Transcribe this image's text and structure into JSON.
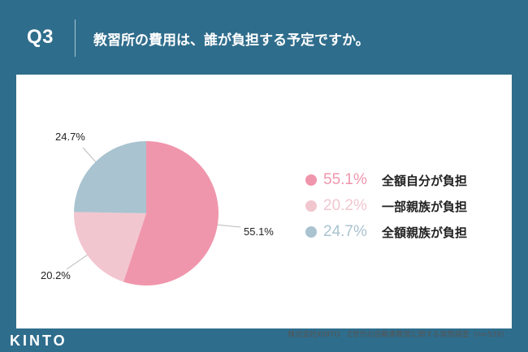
{
  "header": {
    "question_no": "Q3",
    "question": "教習所の費用は、誰が負担する予定ですか。"
  },
  "chart_data": {
    "type": "pie",
    "categories": [
      "全額自分が負担",
      "一部親族が負担",
      "全額親族が負担"
    ],
    "values": [
      55.1,
      20.2,
      24.7
    ],
    "value_labels": [
      "55.1%",
      "20.2%",
      "24.7%"
    ],
    "colors": [
      "#f096ac",
      "#f2c6cf",
      "#a9c3d0"
    ],
    "start_angle_deg": 0,
    "direction": "clockwise",
    "legend_position": "right"
  },
  "legend": [
    {
      "pct": "55.1%",
      "label": "全額自分が負担",
      "color": "#f096ac"
    },
    {
      "pct": "20.2%",
      "label": "一部親族が負担",
      "color": "#f2c6cf"
    },
    {
      "pct": "24.7%",
      "label": "全額親族が負担",
      "color": "#a9c3d0"
    }
  ],
  "footer": {
    "logo": "KINTO",
    "source": "株式会社KINTO　Z世代の自動車教習に関する実態調査（n=539）"
  },
  "colors": {
    "background": "#2f6d8c",
    "card": "#ffffff"
  }
}
